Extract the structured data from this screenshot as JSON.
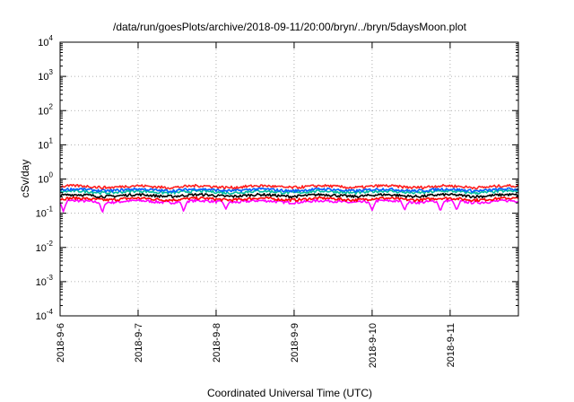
{
  "chart_data": {
    "type": "line",
    "title": "/data/run/goesPlots/archive/2018-09-11/20:00/bryn/../bryn/5daysMoon.plot",
    "xlabel": "Coordinated Universal Time (UTC)",
    "ylabel": "cSv/day",
    "yscale": "log",
    "ylim": [
      0.0001,
      10000
    ],
    "y_ticks": [
      {
        "base": "10",
        "exp": "4",
        "value": 10000
      },
      {
        "base": "10",
        "exp": "3",
        "value": 1000
      },
      {
        "base": "10",
        "exp": "2",
        "value": 100
      },
      {
        "base": "10",
        "exp": "1",
        "value": 10
      },
      {
        "base": "10",
        "exp": "0",
        "value": 1
      },
      {
        "base": "10",
        "exp": "-1",
        "value": 0.1
      },
      {
        "base": "10",
        "exp": "-2",
        "value": 0.01
      },
      {
        "base": "10",
        "exp": "-3",
        "value": 0.001
      },
      {
        "base": "10",
        "exp": "-4",
        "value": 0.0001
      }
    ],
    "xlim": [
      "2018-09-06 00:00",
      "2018-09-11 21:00"
    ],
    "x_ticks": [
      "2018-9-6",
      "2018-9-7",
      "2018-9-8",
      "2018-9-9",
      "2018-9-10",
      "2018-9-11"
    ],
    "grid": true,
    "series": [
      {
        "color": "#ff00ff",
        "level": 0.22,
        "dips": [
          [
            "2018-09-06 01:00",
            0.11
          ],
          [
            "2018-09-06 13:00",
            0.1
          ],
          [
            "2018-09-07 14:00",
            0.11
          ],
          [
            "2018-09-08 03:00",
            0.13
          ],
          [
            "2018-09-10 00:00",
            0.12
          ],
          [
            "2018-09-10 10:00",
            0.12
          ],
          [
            "2018-09-10 21:00",
            0.11
          ],
          [
            "2018-09-11 02:00",
            0.12
          ]
        ]
      },
      {
        "color": "#ff0000",
        "level": 0.26
      },
      {
        "color": "#000000",
        "level": 0.33
      },
      {
        "color": "#00c0a0",
        "level": 0.42
      },
      {
        "color": "#0060ff",
        "level": 0.48
      },
      {
        "color": "#ff2020",
        "level": 0.6
      }
    ]
  }
}
